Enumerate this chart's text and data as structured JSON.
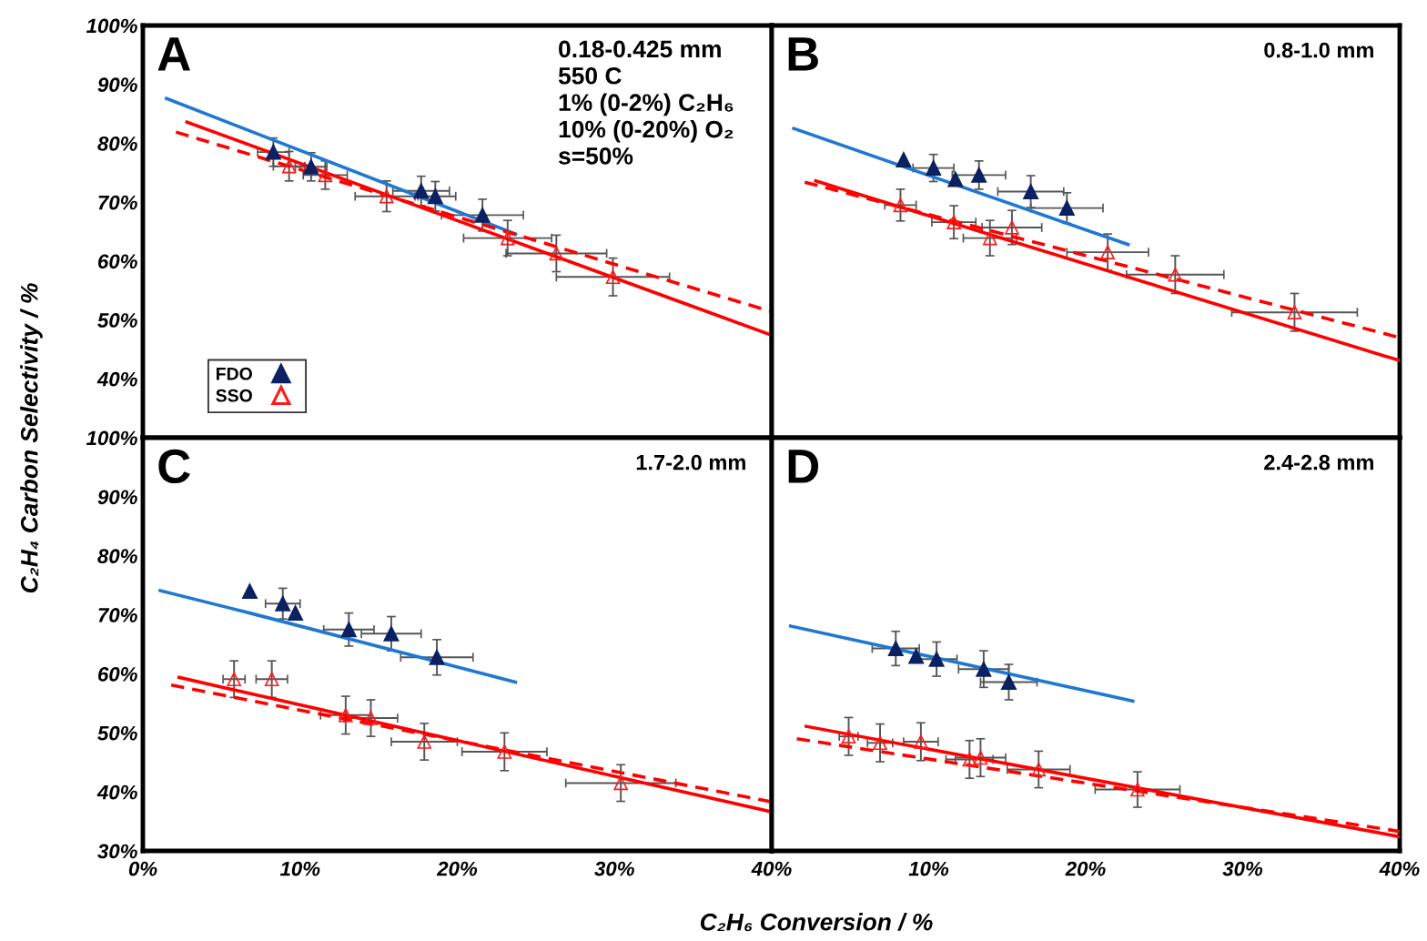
{
  "chart_data": [
    {
      "type": "scatter",
      "ylabel": "C₂H₄ Carbon Selectivity / %",
      "annotations": [
        "A",
        "0.18-0.425 mm\n550 C\n1% (0-2%) C₂H₆\n10% (0-20%) O₂\ns=50%"
      ],
      "xlim": [
        0,
        40
      ],
      "ylim": [
        30,
        100
      ],
      "yticks": [
        {
          "value": 40,
          "label": "40%"
        },
        {
          "value": 50,
          "label": "50%"
        },
        {
          "value": 60,
          "label": "60%"
        },
        {
          "value": 70,
          "label": "70%"
        },
        {
          "value": 80,
          "label": "80%"
        },
        {
          "value": 90,
          "label": "90%"
        },
        {
          "value": 100,
          "label": "100%"
        }
      ],
      "tick_labels": "y",
      "grid": false,
      "legend": "bottom left",
      "series": [
        {
          "name": "FDO",
          "marker": "triangle",
          "color": "#0b2161",
          "x": [
            8.3,
            10.7,
            17.7,
            18.6,
            21.6
          ],
          "values": [
            78.5,
            76.0,
            71.9,
            71.0,
            67.8
          ],
          "errors": [
            2.4,
            2.4,
            2.5,
            2.5,
            2.7
          ],
          "xerrors": [
            1.0,
            1.0,
            1.8,
            1.3,
            2.6
          ]
        },
        {
          "name": "SSO",
          "marker": "triangle",
          "color": "#ff1a1a",
          "x": [
            9.3,
            11.6,
            15.5,
            23.2,
            26.3,
            29.9
          ],
          "values": [
            76.1,
            74.6,
            71.0,
            63.9,
            61.3,
            57.3
          ],
          "errors": [
            2.5,
            2.4,
            2.6,
            3.0,
            3.1,
            3.2
          ],
          "xerrors": [
            1.0,
            1.4,
            2.0,
            2.8,
            3.2,
            3.6
          ]
        },
        {
          "type": "line",
          "color": "#1f78d1",
          "line_style": "solid",
          "x": [
            1.5,
            23.7
          ],
          "values": [
            87.6,
            64.6
          ]
        },
        {
          "type": "line",
          "color": "#ff0000",
          "line_style": "solid",
          "x": [
            2.8,
            40
          ],
          "values": [
            83.6,
            47.4
          ]
        },
        {
          "type": "line",
          "color": "#ff0000",
          "line_style": "dashed",
          "x": [
            2.1,
            40
          ],
          "values": [
            81.9,
            51.4
          ]
        }
      ]
    },
    {
      "type": "scatter",
      "annotations": [
        "B",
        "0.8-1.0 mm"
      ],
      "xlim": [
        0,
        40
      ],
      "ylim": [
        30,
        100
      ],
      "tick_labels": false,
      "grid": false,
      "series": [
        {
          "marker": "triangle",
          "color": "#0b2161",
          "x": [
            8.4,
            10.3,
            11.7,
            13.2,
            16.5,
            18.8
          ],
          "values": [
            77.2,
            75.8,
            73.9,
            74.6,
            71.8,
            69.0
          ],
          "errors": [
            null,
            2.3,
            null,
            2.4,
            2.7,
            2.6
          ],
          "xerrors": [
            null,
            1.3,
            null,
            1.7,
            2.1,
            2.3
          ]
        },
        {
          "marker": "triangle",
          "color": "#ff1a1a",
          "x": [
            8.2,
            11.6,
            13.9,
            15.3,
            21.4,
            25.7,
            33.3
          ],
          "values": [
            69.5,
            66.6,
            63.9,
            65.7,
            61.5,
            57.7,
            51.3
          ],
          "errors": [
            2.7,
            2.8,
            3.0,
            2.9,
            3.1,
            3.2,
            3.2
          ],
          "xerrors": [
            1.0,
            1.4,
            1.7,
            1.9,
            2.6,
            3.1,
            4.0
          ]
        },
        {
          "type": "line",
          "color": "#1f78d1",
          "line_style": "solid",
          "x": [
            1.4,
            22.7
          ],
          "values": [
            82.5,
            62.8
          ]
        },
        {
          "type": "line",
          "color": "#ff0000",
          "line_style": "solid",
          "x": [
            2.8,
            40
          ],
          "values": [
            73.6,
            43.1
          ]
        },
        {
          "type": "line",
          "color": "#ff0000",
          "line_style": "dashed",
          "x": [
            2.1,
            40
          ],
          "values": [
            73.4,
            47.0
          ]
        }
      ]
    },
    {
      "type": "scatter",
      "xlabel": "C₂H₆ Conversion / %",
      "annotations": [
        "C",
        "1.7-2.0 mm"
      ],
      "xlim": [
        0,
        40
      ],
      "ylim": [
        30,
        100
      ],
      "xticks": [
        {
          "value": 0,
          "label": "0%"
        },
        {
          "value": 10,
          "label": "10%"
        },
        {
          "value": 20,
          "label": "20%"
        },
        {
          "value": 30,
          "label": "30%"
        },
        {
          "value": 40,
          "label": "40%"
        }
      ],
      "yticks": [
        {
          "value": 30,
          "label": "30%"
        },
        {
          "value": 40,
          "label": "40%"
        },
        {
          "value": 50,
          "label": "50%"
        },
        {
          "value": 60,
          "label": "60%"
        },
        {
          "value": 70,
          "label": "70%"
        },
        {
          "value": 80,
          "label": "80%"
        },
        {
          "value": 90,
          "label": "90%"
        },
        {
          "value": 100,
          "label": "100%"
        }
      ],
      "grid": false,
      "series": [
        {
          "marker": "triangle",
          "color": "#0b2161",
          "x": [
            6.8,
            8.9,
            9.7,
            13.1,
            15.8,
            18.7
          ],
          "values": [
            74.0,
            71.9,
            70.3,
            67.5,
            66.8,
            62.8
          ],
          "errors": [
            null,
            2.6,
            null,
            2.8,
            2.9,
            3.0
          ],
          "xerrors": [
            null,
            1.1,
            null,
            1.6,
            1.9,
            2.3
          ]
        },
        {
          "marker": "triangle",
          "color": "#ff1a1a",
          "x": [
            5.8,
            8.2,
            12.9,
            14.5,
            17.9,
            23.0,
            30.4
          ],
          "values": [
            59.1,
            59.1,
            53.0,
            52.5,
            48.5,
            46.8,
            41.5
          ],
          "errors": [
            3.1,
            3.1,
            3.2,
            3.1,
            3.1,
            3.2,
            3.1
          ],
          "xerrors": [
            0.7,
            1.0,
            1.6,
            1.7,
            2.1,
            2.7,
            3.5
          ]
        },
        {
          "type": "line",
          "color": "#1f78d1",
          "line_style": "solid",
          "x": [
            1.1,
            6.8,
            23.7
          ],
          "values": [
            74.1,
            70.3,
            58.6
          ]
        },
        {
          "type": "line",
          "color": "#ff0000",
          "line_style": "solid",
          "x": [
            2.3,
            40
          ],
          "values": [
            59.4,
            36.6
          ]
        },
        {
          "type": "line",
          "color": "#ff0000",
          "line_style": "dashed",
          "x": [
            1.8,
            40
          ],
          "values": [
            58.1,
            38.3
          ]
        }
      ]
    },
    {
      "type": "scatter",
      "annotations": [
        "D",
        "2.4-2.8 mm"
      ],
      "xlim": [
        0,
        40
      ],
      "ylim": [
        30,
        100
      ],
      "xticks": [
        {
          "value": 10,
          "label": "10%"
        },
        {
          "value": 20,
          "label": "20%"
        },
        {
          "value": 30,
          "label": "30%"
        },
        {
          "value": 40,
          "label": "40%"
        }
      ],
      "tick_labels": "x",
      "grid": false,
      "series": [
        {
          "marker": "triangle",
          "color": "#0b2161",
          "x": [
            7.9,
            9.2,
            10.5,
            13.5,
            15.1
          ],
          "values": [
            64.3,
            63.0,
            62.5,
            60.8,
            58.6
          ],
          "errors": [
            2.9,
            null,
            2.9,
            3.1,
            3.0
          ],
          "xerrors": [
            1.5,
            null,
            1.3,
            1.6,
            1.8
          ]
        },
        {
          "marker": "triangle",
          "color": "#ff1a1a",
          "x": [
            4.9,
            6.9,
            9.5,
            12.6,
            13.3,
            17.0,
            23.3
          ],
          "values": [
            49.4,
            48.3,
            48.5,
            45.5,
            45.8,
            43.8,
            40.4
          ],
          "errors": [
            3.2,
            3.2,
            3.2,
            3.2,
            3.2,
            3.1,
            3.0
          ],
          "xerrors": [
            0.6,
            0.8,
            1.1,
            1.5,
            1.6,
            2.0,
            2.7
          ]
        },
        {
          "type": "line",
          "color": "#1f78d1",
          "line_style": "solid",
          "x": [
            1.2,
            23.0
          ],
          "values": [
            68.1,
            55.4
          ]
        },
        {
          "type": "line",
          "color": "#ff0000",
          "line_style": "solid",
          "x": [
            2.2,
            40
          ],
          "values": [
            51.1,
            32.4
          ]
        },
        {
          "type": "line",
          "color": "#ff0000",
          "line_style": "dashed",
          "x": [
            1.6,
            40
          ],
          "values": [
            49.0,
            33.3
          ]
        }
      ]
    }
  ]
}
